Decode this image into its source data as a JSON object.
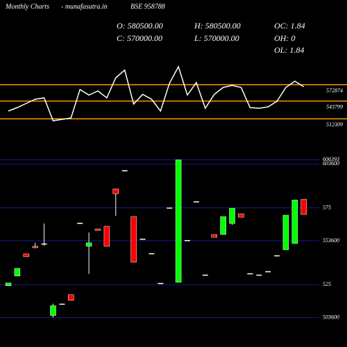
{
  "header": {
    "title": "Monthly Charts",
    "site": "- munafasutra.in",
    "symbol": "BSE 958788",
    "open": "O: 580500.00",
    "high": "H: 580500.00",
    "close": "C: 570000.00",
    "low": "L: 570000.00",
    "oc": "OC: 1.84",
    "oh": "OH: 0",
    "ol": "OL: 1.84"
  },
  "chart_data": [
    {
      "type": "line",
      "ylim": [
        483084,
        618384
      ],
      "yticks": [
        572874,
        543799,
        512309
      ],
      "tick_color": "#ff9900",
      "series": [
        {
          "color": "#ffffff",
          "values": [
            526134,
            532284,
            539664,
            547044,
            549504,
            508914,
            511374,
            513834,
            564264,
            554424,
            561804,
            549504,
            585174,
            598704,
            538434,
            555654,
            547044,
            526134,
            575334,
            604854,
            554424,
            576564,
            531054,
            555654,
            567954,
            571644,
            567954,
            532284,
            531054,
            533514,
            543354,
            567954,
            579024,
            569184
          ]
        }
      ]
    },
    {
      "type": "candlestick",
      "ylim": [
        489000,
        607300
      ],
      "grid": true,
      "grid_color": "#1a1a8c",
      "up_color": "#00ff00",
      "down_color": "#ff0000",
      "yticks": [
        606393,
        603600,
        {
          "value": 575000,
          "label": "575"
        },
        553600,
        {
          "value": 525000,
          "label": "525"
        },
        503600
      ],
      "open": [
        524350,
        530650,
        545050,
        550000,
        551800,
        505000,
        512650,
        518500,
        565300,
        550000,
        561250,
        563050,
        587350,
        599500,
        569350,
        554950,
        545500,
        526150,
        575200,
        526600,
        554050,
        579250,
        531550,
        557650,
        557650,
        564850,
        571150,
        532450,
        531550,
        533800,
        544150,
        547750,
        551800,
        580600
      ],
      "high": [
        526150,
        535600,
        545050,
        552250,
        564850,
        512650,
        512650,
        518500,
        565300,
        559000,
        561250,
        563050,
        587350,
        599500,
        569350,
        554950,
        545500,
        526150,
        575200,
        606250,
        554050,
        579250,
        531550,
        557650,
        569350,
        574750,
        571150,
        532450,
        531550,
        533800,
        544150,
        570250,
        580150,
        580600
      ],
      "low": [
        524350,
        530650,
        543250,
        548650,
        550450,
        503650,
        512650,
        514900,
        565300,
        532000,
        560350,
        550000,
        569800,
        599500,
        539650,
        554950,
        545500,
        526150,
        575200,
        526600,
        554050,
        579250,
        531550,
        555850,
        557650,
        563950,
        568900,
        532450,
        531550,
        533800,
        544150,
        547750,
        551800,
        570700
      ],
      "close": [
        526150,
        535600,
        543250,
        549100,
        551800,
        511300,
        512650,
        514900,
        565300,
        552250,
        560350,
        550000,
        584200,
        599500,
        539650,
        554950,
        545500,
        526150,
        575200,
        606250,
        554050,
        579250,
        531550,
        555850,
        569350,
        574750,
        568900,
        532450,
        531550,
        533800,
        544150,
        570250,
        580150,
        570700
      ]
    }
  ]
}
